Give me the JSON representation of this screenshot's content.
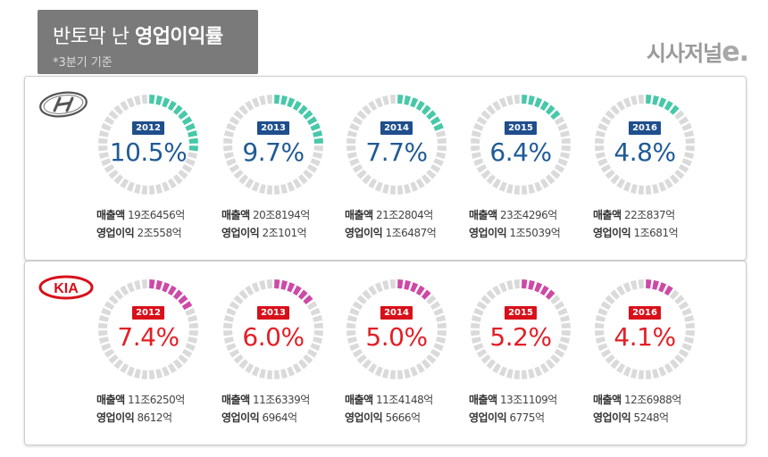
{
  "header": {
    "title_light": "반토막 난 ",
    "title_bold": "영업이익률",
    "subtitle": "*3분기 기준",
    "brand": "시사저널",
    "brand_e": "e."
  },
  "labels": {
    "revenue": "매출액",
    "operating_profit": "영업이익"
  },
  "colors": {
    "hyundai_ring": "#47c8a8",
    "hyundai_badge": "#1f4e8c",
    "hyundai_text": "#1f5a96",
    "kia_ring": "#cc4aa6",
    "kia_badge": "#d8101a",
    "kia_text": "#e21f26",
    "ring_empty": "#dadada"
  },
  "chart_data": [
    {
      "type": "pie",
      "company_logo": "hyundai-logo",
      "series": [
        {
          "year": "2012",
          "margin_label": "10.5%",
          "value": 10.5,
          "revenue": "19조6456억",
          "op_profit": "2조558억"
        },
        {
          "year": "2013",
          "margin_label": "9.7%",
          "value": 9.7,
          "revenue": "20조8194억",
          "op_profit": "2조101억"
        },
        {
          "year": "2014",
          "margin_label": "7.7%",
          "value": 7.7,
          "revenue": "21조2804억",
          "op_profit": "1조6487억"
        },
        {
          "year": "2015",
          "margin_label": "6.4%",
          "value": 6.4,
          "revenue": "23조4296억",
          "op_profit": "1조5039억"
        },
        {
          "year": "2016",
          "margin_label": "4.8%",
          "value": 4.8,
          "revenue": "22조837억",
          "op_profit": "1조681억"
        }
      ]
    },
    {
      "type": "pie",
      "company_logo": "kia-logo",
      "logo_text": "KIA",
      "series": [
        {
          "year": "2012",
          "margin_label": "7.4%",
          "value": 7.4,
          "revenue": "11조6250억",
          "op_profit": "8612억"
        },
        {
          "year": "2013",
          "margin_label": "6.0%",
          "value": 6.0,
          "revenue": "11조6339억",
          "op_profit": "6964억"
        },
        {
          "year": "2014",
          "margin_label": "5.0%",
          "value": 5.0,
          "revenue": "11조4148억",
          "op_profit": "5666억"
        },
        {
          "year": "2015",
          "margin_label": "5.2%",
          "value": 5.2,
          "revenue": "13조1109억",
          "op_profit": "6775억"
        },
        {
          "year": "2016",
          "margin_label": "4.1%",
          "value": 4.1,
          "revenue": "12조6988억",
          "op_profit": "5248억"
        }
      ]
    }
  ]
}
